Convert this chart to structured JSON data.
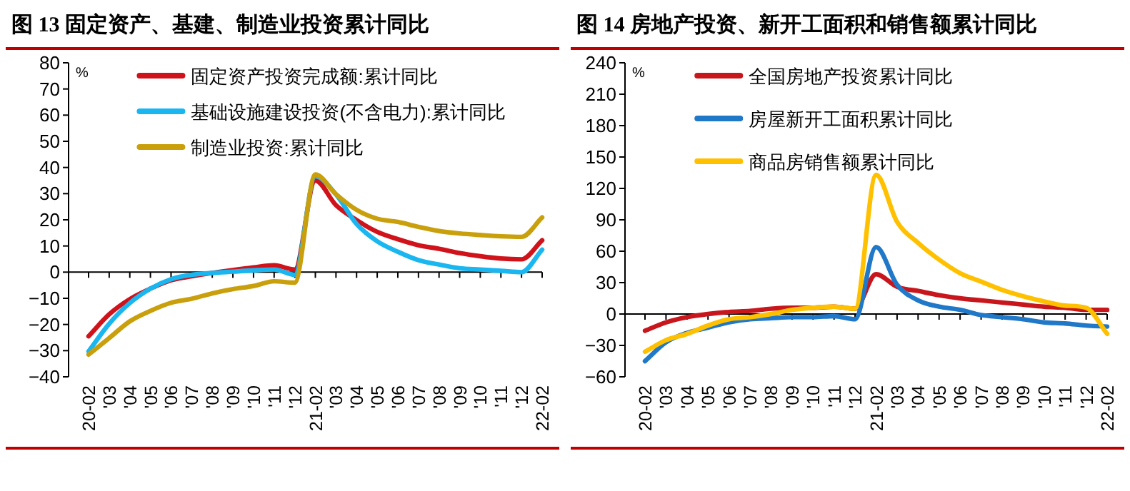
{
  "chart_data": [
    {
      "type": "line",
      "title": "图 13 固定资产、基建、制造业投资累计同比",
      "ylabel": "%",
      "legend": "top",
      "categories": [
        "20-02",
        "'03",
        "'04",
        "'05",
        "'06",
        "'07",
        "'08",
        "'09",
        "'10",
        "'11",
        "'12",
        "21-02",
        "'03",
        "'04",
        "'05",
        "'06",
        "'07",
        "'08",
        "'09",
        "'10",
        "'11",
        "'12",
        "22-02"
      ],
      "ylim": [
        -40,
        80
      ],
      "yticks": [
        -40,
        -30,
        -20,
        -10,
        0,
        10,
        20,
        30,
        40,
        50,
        60,
        70,
        80
      ],
      "series": [
        {
          "name": "固定资产投资完成额:累计同比",
          "color": "#d0121b",
          "values": [
            -24.5,
            -16.1,
            -10.3,
            -6.3,
            -3.1,
            -1.6,
            -0.3,
            0.8,
            1.8,
            2.6,
            1,
            35,
            25.6,
            19.9,
            15.4,
            12.6,
            10.3,
            8.9,
            7.3,
            6.1,
            5.2,
            4.9,
            12.2
          ]
        },
        {
          "name": "基础设施建设投资(不含电力):累计同比",
          "color": "#1ab6f0",
          "values": [
            -30.3,
            -19.7,
            -11.8,
            -6.3,
            -2.7,
            -1.0,
            -0.3,
            0.2,
            0.7,
            1.0,
            -1,
            36.6,
            29.7,
            18.4,
            11.8,
            7.8,
            4.6,
            2.9,
            1.5,
            1.0,
            0.5,
            0,
            8.6
          ]
        },
        {
          "name": "制造业投资:累计同比",
          "color": "#c9a00c",
          "values": [
            -31.5,
            -25.2,
            -18.8,
            -14.8,
            -11.7,
            -10.2,
            -8.1,
            -6.5,
            -5.3,
            -3.5,
            -4,
            37.3,
            29.8,
            23.8,
            20.4,
            19.2,
            17.3,
            15.7,
            14.8,
            14.2,
            13.7,
            13.5,
            20.9
          ]
        }
      ]
    },
    {
      "type": "line",
      "title": "图 14 房地产投资、新开工面积和销售额累计同比",
      "ylabel": "%",
      "legend": "top",
      "categories": [
        "20-02",
        "'03",
        "'04",
        "'05",
        "'06",
        "'07",
        "'08",
        "'09",
        "'10",
        "'11",
        "'12",
        "21-02",
        "'03",
        "'04",
        "'05",
        "'06",
        "'07",
        "'08",
        "'09",
        "'10",
        "'11",
        "'12",
        "22-02"
      ],
      "ylim": [
        -60,
        240
      ],
      "yticks": [
        -60,
        -30,
        0,
        30,
        60,
        90,
        120,
        150,
        180,
        210,
        240
      ],
      "series": [
        {
          "name": "全国房地产投资累计同比",
          "color": "#c8161d",
          "values": [
            -16,
            -8,
            -3,
            0,
            2,
            3,
            5,
            6,
            6,
            7,
            5,
            38,
            26,
            22,
            18,
            15,
            13,
            11,
            9,
            7,
            6,
            4,
            4
          ]
        },
        {
          "name": "房屋新开工面积累计同比",
          "color": "#1f78c8",
          "values": [
            -45,
            -27,
            -18,
            -13,
            -8,
            -5,
            -4,
            -3,
            -3,
            -2,
            -5,
            64,
            28,
            13,
            7,
            4,
            -1,
            -3,
            -5,
            -8,
            -9,
            -11,
            -12
          ]
        },
        {
          "name": "商品房销售额累计同比",
          "color": "#ffc000",
          "values": [
            -36,
            -25,
            -19,
            -11,
            -5,
            -3,
            0,
            4,
            6,
            7,
            5,
            133,
            88,
            68,
            52,
            39,
            31,
            23,
            17,
            12,
            8,
            6,
            -19
          ]
        }
      ]
    }
  ]
}
